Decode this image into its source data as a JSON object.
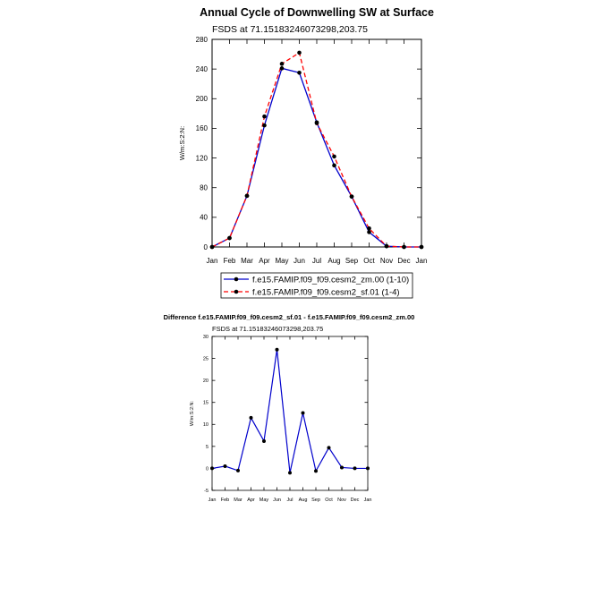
{
  "chart_data": [
    {
      "type": "line",
      "title": "Annual Cycle of Downwelling SW at Surface",
      "subtitle": "FSDS at 71.15183246073298,203.75",
      "ylabel": "W/m:S:2:N:",
      "xlabel": "",
      "categories": [
        "Jan",
        "Feb",
        "Mar",
        "Apr",
        "May",
        "Jun",
        "Jul",
        "Aug",
        "Sep",
        "Oct",
        "Nov",
        "Dec",
        "Jan"
      ],
      "ylim": [
        0,
        280
      ],
      "yticks": [
        0,
        40,
        80,
        120,
        160,
        200,
        240,
        280
      ],
      "series": [
        {
          "name": "f.e15.FAMIP.f09_f09.cesm2_zm.00 (1-10)",
          "color": "#0000cc",
          "dash": "solid",
          "values": [
            0,
            12,
            69,
            164,
            241,
            235,
            168,
            110,
            68,
            20,
            1,
            0,
            0
          ]
        },
        {
          "name": "f.e15.FAMIP.f09_f09.cesm2_sf.01 (1-4)",
          "color": "#ff0000",
          "dash": "dashed",
          "values": [
            0,
            12,
            69,
            176,
            247,
            262,
            167,
            122,
            68,
            25,
            1,
            0,
            0
          ]
        }
      ],
      "legend": "bottom"
    },
    {
      "type": "line",
      "title": "Difference f.e15.FAMIP.f09_f09.cesm2_sf.01 - f.e15.FAMIP.f09_f09.cesm2_zm.00",
      "subtitle": "FSDS at 71.15183246073298,203.75",
      "ylabel": "W/m:S:2:N:",
      "xlabel": "",
      "categories": [
        "Jan",
        "Feb",
        "Mar",
        "Apr",
        "May",
        "Jun",
        "Jul",
        "Aug",
        "Sep",
        "Oct",
        "Nov",
        "Dec",
        "Jan"
      ],
      "ylim": [
        -5,
        30
      ],
      "yticks": [
        -5,
        0,
        5,
        10,
        15,
        20,
        25,
        30
      ],
      "series": [
        {
          "name": "",
          "color": "#0000cc",
          "dash": "solid",
          "values": [
            0,
            0.5,
            -0.5,
            11.5,
            6.2,
            27,
            -1,
            12.6,
            -0.6,
            4.7,
            0.2,
            0,
            0
          ]
        }
      ]
    }
  ]
}
